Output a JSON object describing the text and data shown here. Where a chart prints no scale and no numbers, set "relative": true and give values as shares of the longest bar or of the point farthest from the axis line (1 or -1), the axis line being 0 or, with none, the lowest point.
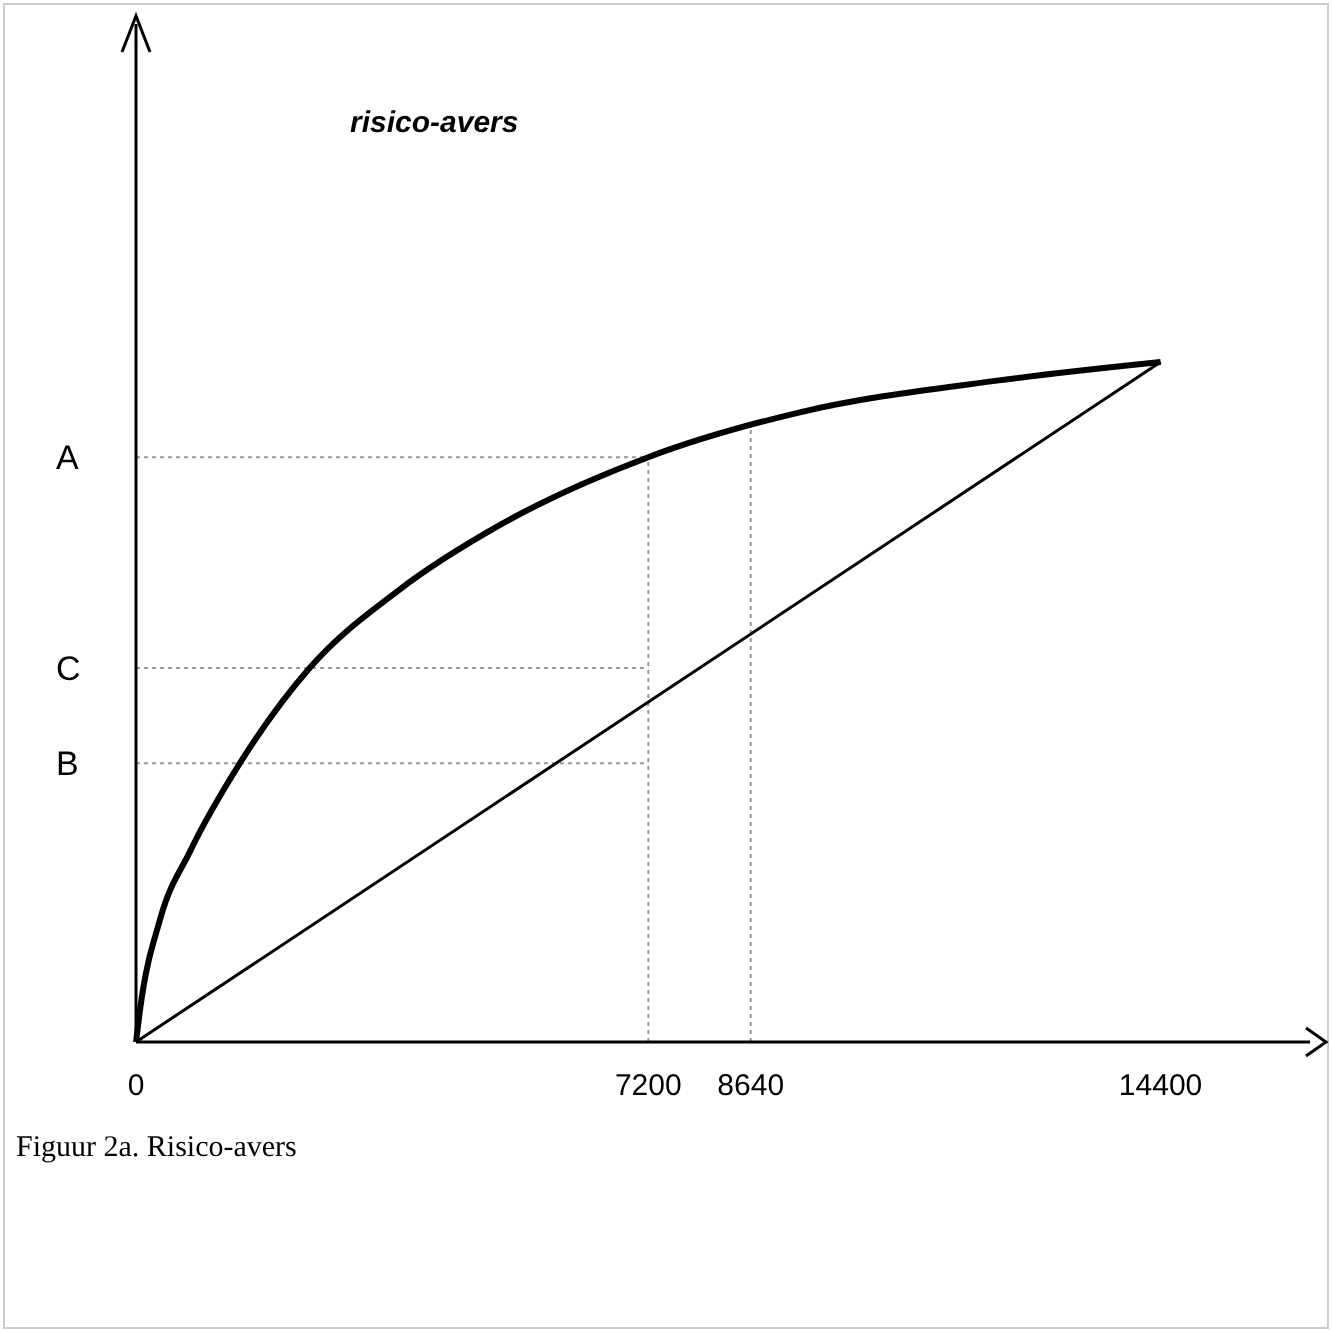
{
  "chart_data": {
    "type": "line",
    "title": "risico-avers",
    "relative": true,
    "xlim": [
      0,
      16500
    ],
    "xticks": [
      0,
      7200,
      8640,
      14400
    ],
    "series": [
      {
        "color": "#000000",
        "x": [
          0,
          56,
          337,
          758,
          1460,
          2440,
          3700,
          5110,
          7200,
          9330,
          12130,
          14400
        ],
        "values": [
          0,
          0.047,
          0.18,
          0.28,
          0.41,
          0.55,
          0.665,
          0.76,
          0.86,
          0.926,
          0.973,
          1
        ]
      },
      {
        "color": "#000000",
        "x": [
          0,
          14400
        ],
        "values": [
          0,
          1
        ]
      }
    ],
    "ref_lines": [
      {
        "axis": "y",
        "value": 0.86,
        "label": "A",
        "line_style": "dotted",
        "color": "#999999"
      },
      {
        "axis": "y",
        "value": 0.55,
        "label": "C",
        "line_style": "dotted",
        "color": "#999999"
      },
      {
        "axis": "y",
        "value": 0.41,
        "label": "B",
        "line_style": "dotted",
        "color": "#999999"
      },
      {
        "axis": "x",
        "value": 7200,
        "line_style": "dotted",
        "color": "#999999"
      },
      {
        "axis": "x",
        "value": 8640,
        "line_style": "dotted",
        "color": "#999999"
      }
    ],
    "annotations": [
      "Figuur 2a. Risico-avers"
    ],
    "marker": "none",
    "line_style": "solid"
  }
}
